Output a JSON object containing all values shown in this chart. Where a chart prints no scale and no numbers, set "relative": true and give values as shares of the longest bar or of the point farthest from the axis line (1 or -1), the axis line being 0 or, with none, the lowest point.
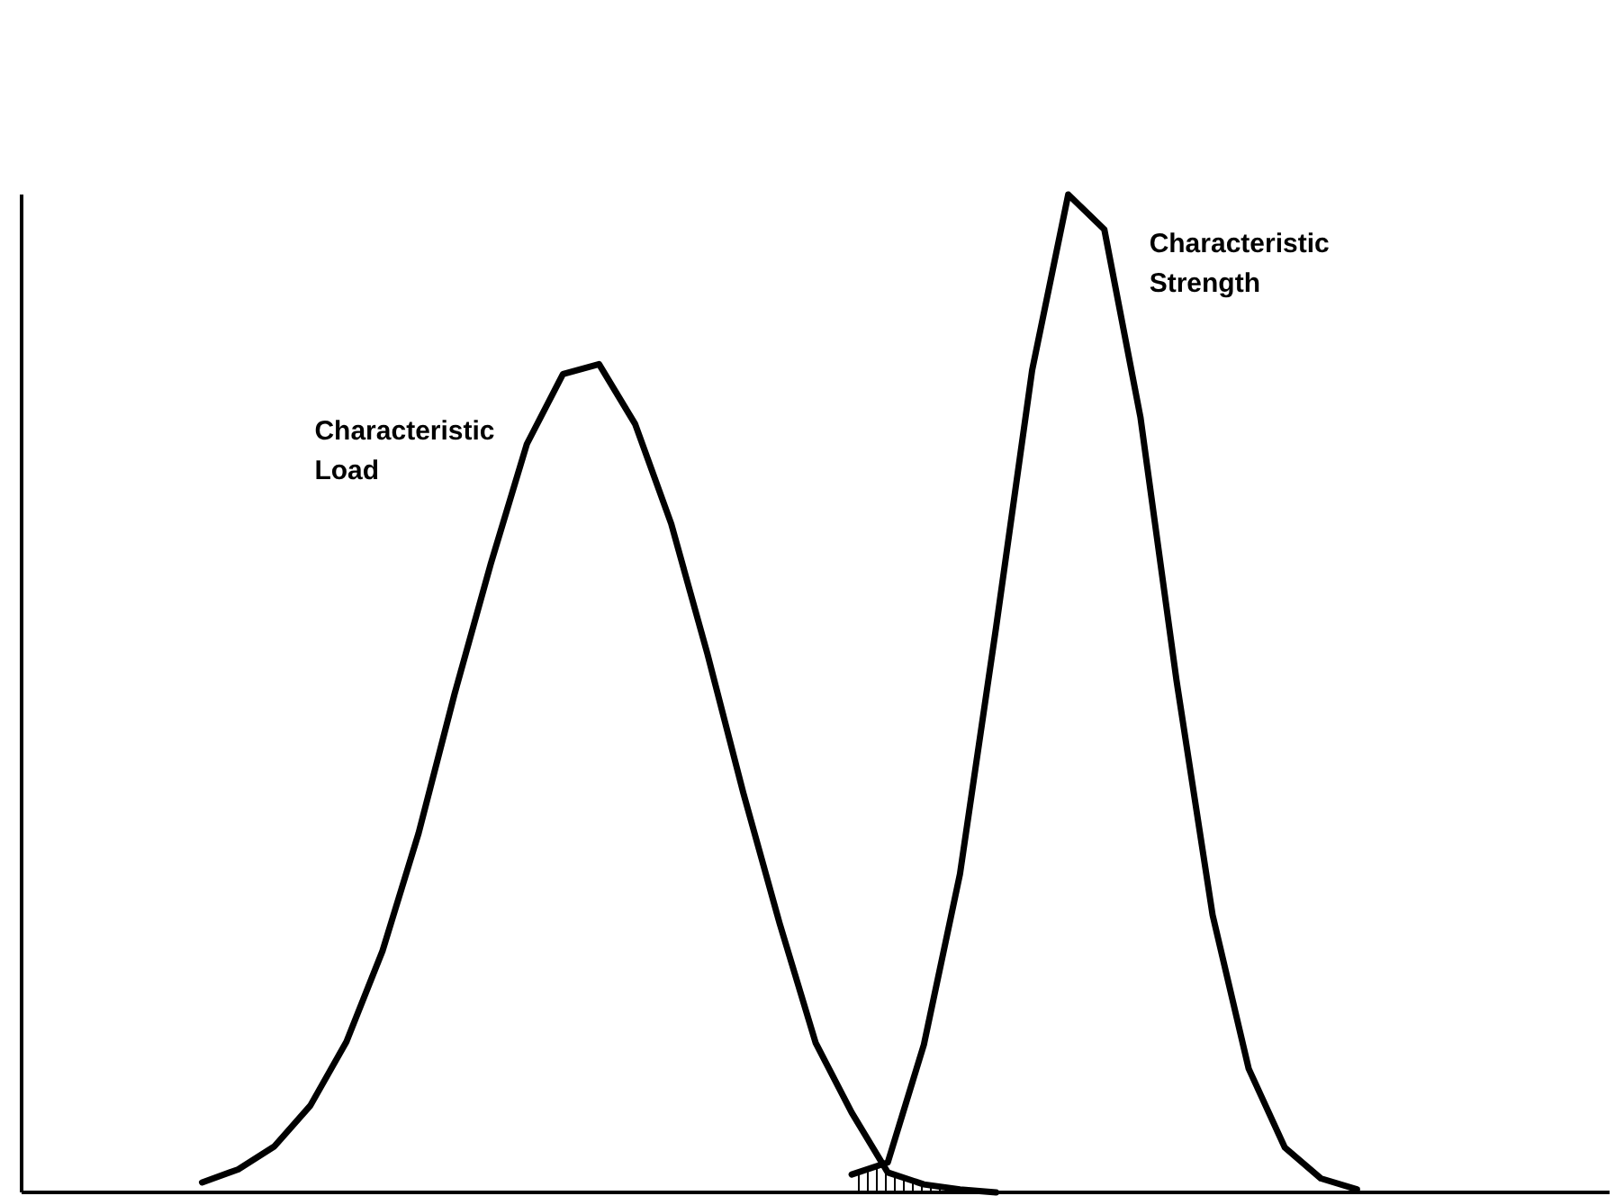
{
  "chart_data": {
    "type": "line",
    "relative": true,
    "legend": false,
    "grid": false,
    "marker": "none",
    "line_style": "solid",
    "categories": [
      null,
      null,
      null,
      null,
      null,
      null,
      null,
      null,
      null,
      null,
      null,
      null,
      null,
      null,
      null,
      null,
      null,
      null,
      null,
      null,
      null,
      null,
      null,
      null,
      null,
      null,
      null,
      null,
      null,
      null,
      null,
      null,
      null,
      null,
      null,
      null,
      null,
      null,
      null,
      null,
      null,
      null,
      null,
      null,
      null
    ],
    "series": [
      {
        "name": "Characteristic Load",
        "color": "#000000",
        "values": [
          null,
          null,
          null,
          null,
          null,
          0.01,
          0.023,
          0.046,
          0.087,
          0.151,
          0.242,
          0.36,
          0.5,
          0.63,
          0.75,
          0.82,
          0.83,
          0.77,
          0.67,
          0.54,
          0.4,
          0.27,
          0.15,
          0.08,
          0.02,
          0.008,
          0.003,
          0,
          null,
          null,
          null,
          null,
          null,
          null,
          null,
          null,
          null,
          null,
          null,
          null,
          null,
          null,
          null,
          null,
          null
        ]
      },
      {
        "name": "Characteristic Strength",
        "color": "#000000",
        "values": [
          null,
          null,
          null,
          null,
          null,
          null,
          null,
          null,
          null,
          null,
          null,
          null,
          null,
          null,
          null,
          null,
          null,
          null,
          null,
          null,
          null,
          null,
          null,
          0.018,
          0.03,
          0.148,
          0.319,
          0.566,
          0.824,
          1,
          0.965,
          0.777,
          0.513,
          0.278,
          0.124,
          0.045,
          0.014,
          0.003,
          null,
          null,
          null,
          null,
          null,
          null,
          null
        ]
      }
    ]
  }
}
